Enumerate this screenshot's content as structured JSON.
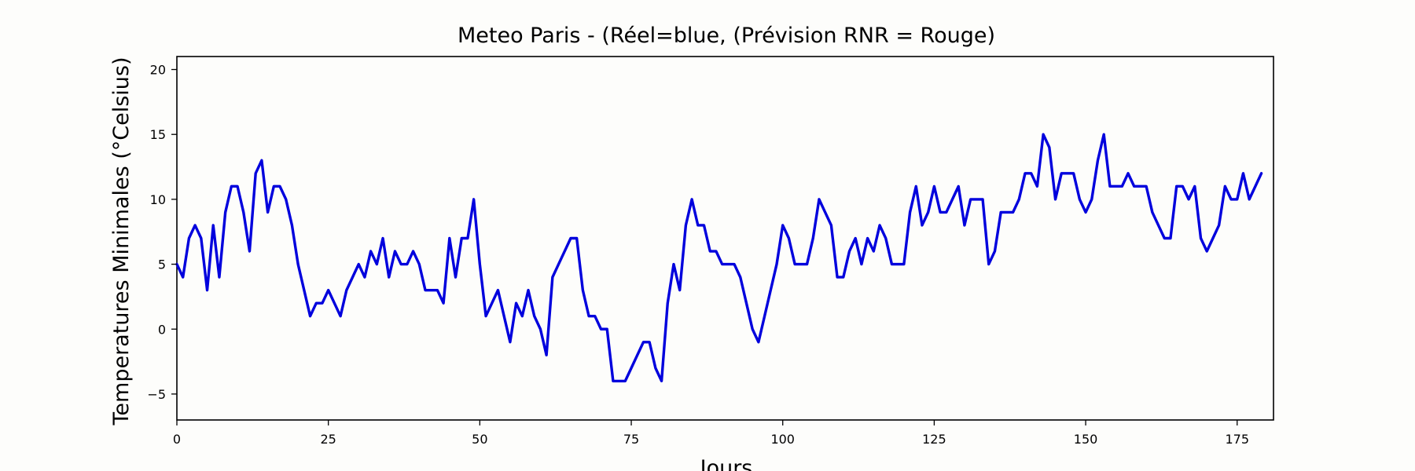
{
  "chart_data": {
    "type": "line",
    "title": "Meteo Paris - (Réel=blue, (Prévision RNR = Rouge)",
    "xlabel": "Jours",
    "ylabel": "Temperatures Minimales (°Celsius)",
    "xlim": [
      0,
      181
    ],
    "ylim": [
      -7,
      21
    ],
    "xticks": [
      0,
      25,
      50,
      75,
      100,
      125,
      150,
      175
    ],
    "yticks": [
      -5,
      0,
      5,
      10,
      15,
      20
    ],
    "grid": false,
    "series": [
      {
        "color": "#0000dd",
        "x": [
          0,
          1,
          2,
          3,
          4,
          5,
          6,
          7,
          8,
          9,
          10,
          11,
          12,
          13,
          14,
          15,
          16,
          17,
          18,
          19,
          20,
          21,
          22,
          23,
          24,
          25,
          26,
          27,
          28,
          29,
          30,
          31,
          32,
          33,
          34,
          35,
          36,
          37,
          38,
          39,
          40,
          41,
          42,
          43,
          44,
          45,
          46,
          47,
          48,
          49,
          50,
          51,
          52,
          53,
          54,
          55,
          56,
          57,
          58,
          59,
          60,
          61,
          62,
          63,
          64,
          65,
          66,
          67,
          68,
          69,
          70,
          71,
          72,
          73,
          74,
          75,
          76,
          77,
          78,
          79,
          80,
          81,
          82,
          83,
          84,
          85,
          86,
          87,
          88,
          89,
          90,
          91,
          92,
          93,
          94,
          95,
          96,
          97,
          98,
          99,
          100,
          101,
          102,
          103,
          104,
          105,
          106,
          107,
          108,
          109,
          110,
          111,
          112,
          113,
          114,
          115,
          116,
          117,
          118,
          119,
          120,
          121,
          122,
          123,
          124,
          125,
          126,
          127,
          128,
          129,
          130,
          131,
          132,
          133,
          134,
          135,
          136,
          137,
          138,
          139,
          140,
          141,
          142,
          143,
          144,
          145,
          146,
          147,
          148,
          149,
          150,
          151,
          152,
          153,
          154,
          155,
          156,
          157,
          158,
          159,
          160,
          161,
          162,
          163,
          164,
          165,
          166,
          167,
          168,
          169,
          170,
          171,
          172,
          173,
          174,
          175,
          176,
          177,
          178,
          179
        ],
        "values": [
          5,
          4,
          7,
          8,
          7,
          3,
          8,
          4,
          9,
          11,
          11,
          9,
          6,
          12,
          13,
          9,
          11,
          11,
          10,
          8,
          5,
          3,
          1,
          2,
          2,
          3,
          2,
          1,
          3,
          4,
          5,
          4,
          6,
          5,
          7,
          4,
          6,
          5,
          5,
          6,
          5,
          3,
          3,
          3,
          2,
          7,
          4,
          7,
          7,
          10,
          5,
          1,
          2,
          3,
          1,
          -1,
          2,
          1,
          3,
          1,
          0,
          -2,
          4,
          5,
          6,
          7,
          7,
          3,
          1,
          1,
          0,
          0,
          -4,
          -4,
          -4,
          -3,
          -2,
          -1,
          -1,
          -3,
          -4,
          2,
          5,
          3,
          8,
          10,
          8,
          8,
          6,
          6,
          5,
          5,
          5,
          4,
          2,
          0,
          -1,
          1,
          3,
          5,
          8,
          7,
          5,
          5,
          5,
          7,
          10,
          9,
          8,
          4,
          4,
          6,
          7,
          5,
          7,
          6,
          8,
          7,
          5,
          5,
          5,
          9,
          11,
          8,
          9,
          11,
          9,
          9,
          10,
          11,
          8,
          10,
          10,
          10,
          5,
          6,
          9,
          9,
          9,
          10,
          12,
          12,
          11,
          15,
          14,
          10,
          12,
          12,
          12,
          10,
          9,
          10,
          13,
          15,
          11,
          11,
          11,
          12,
          11,
          11,
          11,
          9,
          8,
          7,
          7,
          11,
          11,
          10,
          11,
          7,
          6,
          7,
          8,
          11,
          10,
          10,
          12,
          10,
          11,
          12
        ]
      }
    ]
  }
}
